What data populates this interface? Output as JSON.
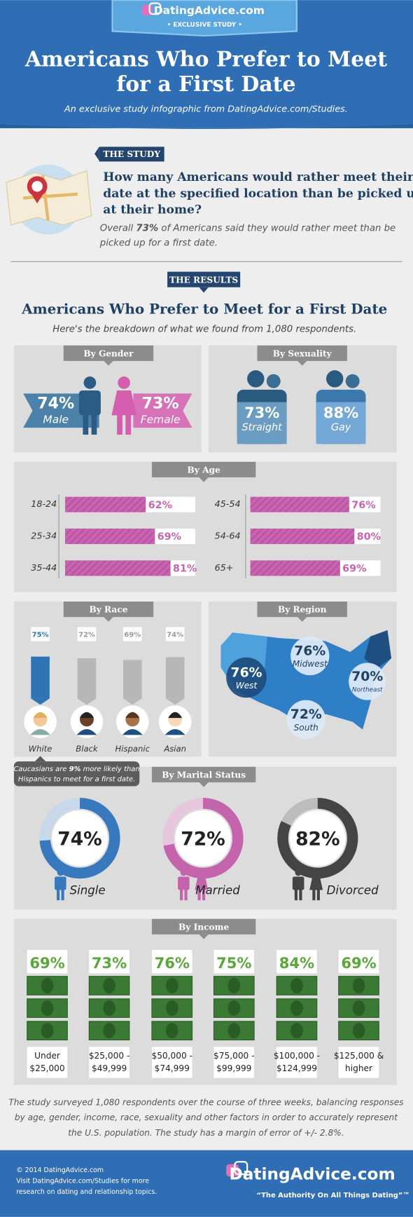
{
  "header": {
    "brand": "DatingAdvice.com",
    "badge": "• EXCLUSIVE STUDY •",
    "title_lines": [
      "Americans Who Prefer to Meet",
      "for a First Date"
    ],
    "subtitle": "An exclusive study infographic from DatingAdvice.com/Studies."
  },
  "study": {
    "tag": "THE STUDY",
    "question_lines": [
      "How many Americans would rather meet their",
      "date at the specified location than be picked up",
      "at their home?"
    ],
    "summary_line1": [
      "Overall ",
      "73%",
      " of Americans said they would rather meet than be"
    ],
    "summary_line2": "picked up for a first date."
  },
  "results": {
    "tag": "THE RESULTS",
    "title": "Americans Who Prefer to Meet for a First Date",
    "subtitle": "Here's the breakdown of what we found from 1,080 respondents."
  },
  "gender": {
    "title": "By Gender",
    "items": [
      {
        "label": "Male",
        "value_label": "74%"
      },
      {
        "label": "Female",
        "value_label": "73%"
      }
    ]
  },
  "sexuality": {
    "title": "By Sexuality",
    "items": [
      {
        "label": "Straight",
        "value_label": "73%"
      },
      {
        "label": "Gay",
        "value_label": "88%"
      }
    ]
  },
  "age": {
    "title": "By Age",
    "items": [
      {
        "label": "18-24",
        "value": 62,
        "value_label": "62%"
      },
      {
        "label": "25-34",
        "value": 69,
        "value_label": "69%"
      },
      {
        "label": "35-44",
        "value": 81,
        "value_label": "81%"
      },
      {
        "label": "45-54",
        "value": 76,
        "value_label": "76%"
      },
      {
        "label": "54-64",
        "value": 80,
        "value_label": "80%"
      },
      {
        "label": "65+",
        "value": 69,
        "value_label": "69%"
      }
    ]
  },
  "race": {
    "title": "By Race",
    "items": [
      {
        "label": "White",
        "value": 75,
        "value_label": "75%"
      },
      {
        "label": "Black",
        "value": 72,
        "value_label": "72%"
      },
      {
        "label": "Hispanic",
        "value": 69,
        "value_label": "69%"
      },
      {
        "label": "Asian",
        "value": 74,
        "value_label": "74%"
      }
    ],
    "note_line1": [
      "Caucasians are ",
      "9%",
      " more likely than"
    ],
    "note_line2": "Hispanics to meet for a first date."
  },
  "region": {
    "title": "By Region",
    "items": [
      {
        "label": "West",
        "value_label": "76%"
      },
      {
        "label": "Midwest",
        "value_label": "76%"
      },
      {
        "label": "Northeast",
        "value_label": "70%"
      },
      {
        "label": "South",
        "value_label": "72%"
      }
    ]
  },
  "marital": {
    "title": "By Marital Status",
    "items": [
      {
        "label": "Single",
        "value": 74,
        "value_label": "74%"
      },
      {
        "label": "Married",
        "value": 72,
        "value_label": "72%"
      },
      {
        "label": "Divorced",
        "value": 82,
        "value_label": "82%"
      }
    ]
  },
  "income": {
    "title": "By Income",
    "items": [
      {
        "label_lines": [
          "Under",
          "$25,000"
        ],
        "value_label": "69%"
      },
      {
        "label_lines": [
          "$25,000 -",
          "$49,999"
        ],
        "value_label": "73%"
      },
      {
        "label_lines": [
          "$50,000 -",
          "$74,999"
        ],
        "value_label": "76%"
      },
      {
        "label_lines": [
          "$75,000 -",
          "$99,999"
        ],
        "value_label": "75%"
      },
      {
        "label_lines": [
          "$100,000 -",
          "$124,999"
        ],
        "value_label": "84%"
      },
      {
        "label_lines": [
          "$125,000 &",
          "higher"
        ],
        "value_label": "69%"
      }
    ]
  },
  "methodology_lines": [
    "The study surveyed 1,080 respondents over the course of three weeks, balancing responses",
    "by age, gender, income, race, sexuality and other factors in order to accurately represent",
    "the U.S. population. The study has a margin of error of +/- 2.8%."
  ],
  "footer": {
    "lines": [
      "© 2014 DatingAdvice.com",
      "Visit DatingAdvice.com/Studies for more",
      "research on dating and relationship topics."
    ],
    "brand": "DatingAdvice.com",
    "tagline": "“The Authority On All Things Dating”™"
  }
}
